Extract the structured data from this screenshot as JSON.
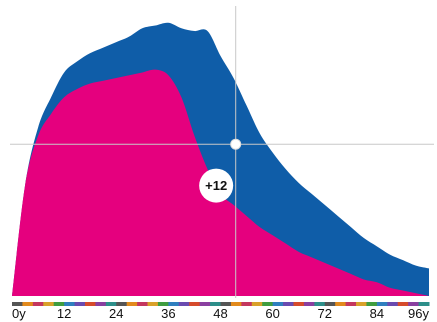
{
  "chart_data": {
    "type": "area",
    "x": [
      0,
      3,
      6,
      9,
      12,
      15,
      18,
      21,
      24,
      27,
      30,
      33,
      36,
      39,
      42,
      45,
      48,
      51,
      54,
      57,
      60,
      63,
      66,
      69,
      72,
      75,
      78,
      81,
      84,
      87,
      90,
      93,
      96
    ],
    "series": [
      {
        "values": [
          0,
          40,
          58,
          66,
          72,
          75,
          77,
          78,
          79,
          80,
          81,
          82,
          80,
          72,
          58,
          46,
          37,
          33,
          29,
          25,
          22,
          19,
          16,
          14,
          12,
          10,
          8,
          6,
          5,
          3,
          2,
          1,
          0
        ],
        "color": "#e5007e"
      },
      {
        "values": [
          0,
          0,
          3,
          6,
          9,
          10,
          11,
          12,
          13,
          14,
          16,
          16,
          19,
          25,
          38,
          50,
          50,
          46,
          40,
          34,
          30,
          27,
          25,
          23,
          21,
          19,
          17,
          15,
          13,
          12,
          11,
          10,
          10
        ],
        "color": "#0f5da8"
      }
    ],
    "stacked": true,
    "xlim": [
      0,
      96
    ],
    "ylim": [
      0,
      100
    ],
    "x_tick_labels": [
      "0y",
      "12",
      "24",
      "36",
      "48",
      "60",
      "72",
      "84",
      "96y"
    ],
    "x_tick_values": [
      0,
      12,
      24,
      36,
      48,
      60,
      72,
      84,
      96
    ],
    "crosshair": {
      "x": 51.5,
      "y": 55
    },
    "marker_badge": {
      "label": "+12",
      "x": 47,
      "y": 40
    },
    "grid": false,
    "legend": "none"
  },
  "colors": {
    "axis_strip": [
      "#555555",
      "#d64b2b",
      "#3f9d3f",
      "#e28a1c",
      "#8a3fa0",
      "#2f7fbf",
      "#c4375f",
      "#2d8f8a",
      "#6a4bb0",
      "#d9a12a"
    ],
    "crosshair": "#c8c8c8",
    "badge_fill": "#ffffff"
  }
}
